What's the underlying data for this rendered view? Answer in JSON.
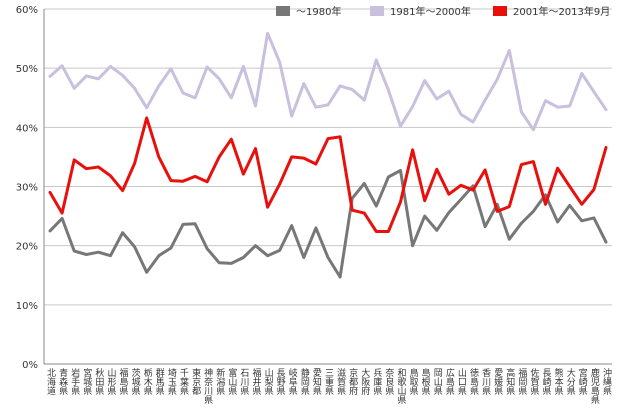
{
  "chart_data": {
    "type": "line",
    "title": "",
    "xlabel": "",
    "ylabel": "",
    "ylim": [
      0,
      60
    ],
    "yticks": [
      "0%",
      "10%",
      "20%",
      "30%",
      "40%",
      "50%",
      "60%"
    ],
    "grid": true,
    "legend_position": "top-right",
    "categories": [
      "北海道",
      "青森県",
      "岩手県",
      "宮城県",
      "秋田県",
      "山形県",
      "福島県",
      "茨城県",
      "栃木県",
      "群馬県",
      "埼玉県",
      "千葉県",
      "東京都",
      "神奈川県",
      "新潟県",
      "富山県",
      "石川県",
      "福井県",
      "山梨県",
      "長野県",
      "岐阜県",
      "静岡県",
      "愛知県",
      "三重県",
      "滋賀県",
      "京都府",
      "大阪府",
      "兵庫県",
      "奈良県",
      "和歌山県",
      "鳥取県",
      "島根県",
      "岡山県",
      "広島県",
      "山口県",
      "徳島県",
      "香川県",
      "愛媛県",
      "高知県",
      "福岡県",
      "佐賀県",
      "長崎県",
      "熊本県",
      "大分県",
      "宮崎県",
      "鹿児島県",
      "沖縄県"
    ],
    "series": [
      {
        "name": "～1980年",
        "color": "#777777",
        "values": [
          22.5,
          24.6,
          19.1,
          18.5,
          18.9,
          18.3,
          22.2,
          19.8,
          15.5,
          18.3,
          19.6,
          23.6,
          23.7,
          19.5,
          17.1,
          17.0,
          18.0,
          20.0,
          18.3,
          19.2,
          23.4,
          18.0,
          23.0,
          18.0,
          14.7,
          28.0,
          30.5,
          26.7,
          31.6,
          32.7,
          20.0,
          25.0,
          22.6,
          25.6,
          27.8,
          30.1,
          23.2,
          27.0,
          21.1,
          23.8,
          25.8,
          28.6,
          24.0,
          26.8,
          24.2,
          24.7,
          20.6
        ]
      },
      {
        "name": "1981年～2000年",
        "color": "#c8c0dc",
        "values": [
          48.6,
          50.4,
          46.6,
          48.7,
          48.2,
          50.3,
          48.8,
          46.6,
          43.3,
          47.0,
          49.9,
          45.8,
          45.0,
          50.2,
          48.2,
          45.0,
          50.3,
          43.6,
          55.9,
          51.0,
          41.9,
          47.4,
          43.4,
          43.8,
          47.0,
          46.4,
          44.6,
          51.4,
          46.3,
          40.2,
          43.5,
          47.9,
          44.8,
          46.1,
          42.2,
          40.9,
          44.6,
          48.1,
          53.0,
          42.6,
          39.6,
          44.5,
          43.4,
          43.6,
          49.1,
          46.0,
          43.0
        ]
      },
      {
        "name": "2001年～2013年9月",
        "color": "#e8100c",
        "values": [
          29.0,
          25.5,
          34.5,
          33.0,
          33.3,
          31.8,
          29.3,
          33.9,
          41.6,
          35.0,
          31.0,
          30.9,
          31.7,
          30.8,
          35.0,
          38.0,
          32.1,
          36.4,
          26.5,
          30.4,
          35.0,
          34.8,
          33.8,
          38.1,
          38.4,
          26.0,
          25.5,
          22.4,
          22.4,
          27.4,
          36.2,
          27.6,
          32.9,
          28.7,
          30.2,
          29.4,
          32.8,
          25.8,
          26.6,
          33.7,
          34.2,
          27.0,
          33.1,
          30.0,
          27.0,
          29.5,
          36.6
        ]
      }
    ]
  }
}
